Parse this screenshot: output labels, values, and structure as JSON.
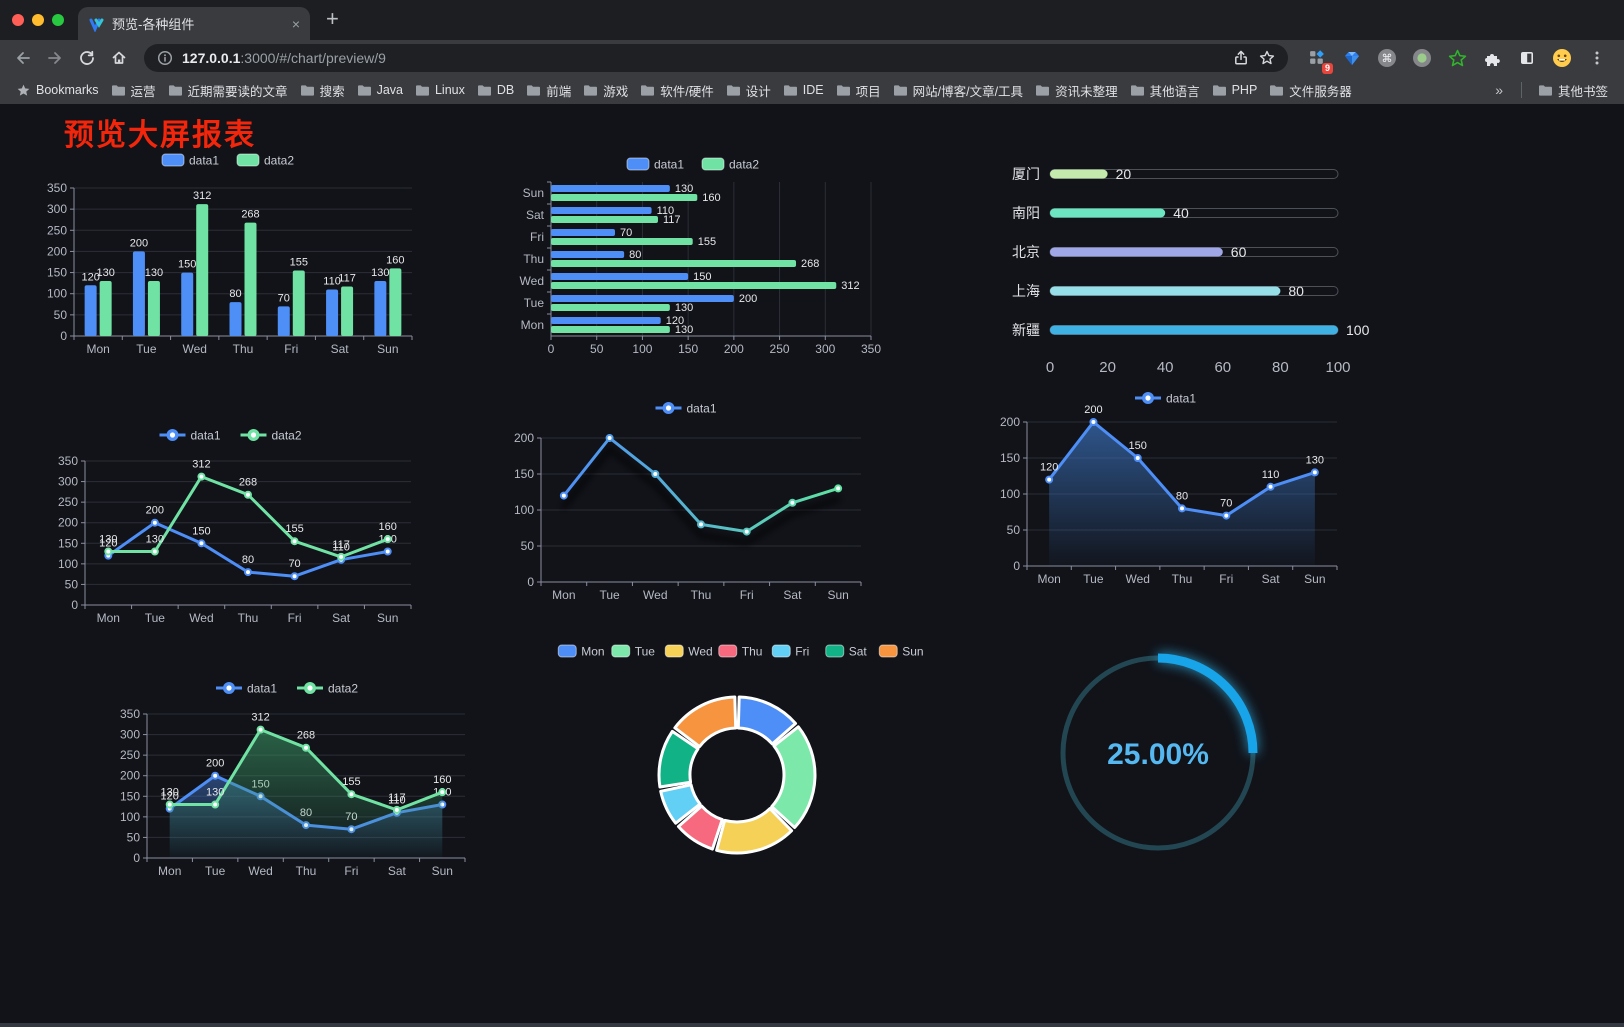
{
  "browser": {
    "tab": {
      "title": "预览-各种组件",
      "close_glyph": "×",
      "new_tab_glyph": "+"
    },
    "nav": {
      "url_host": "127.0.0.1",
      "url_rest": ":3000/#/chart/preview/9"
    },
    "extensions_badge": "9",
    "bookmarks": {
      "label": "Bookmarks",
      "folders": [
        "运营",
        "近期需要读的文章",
        "搜索",
        "Java",
        "Linux",
        "DB",
        "前端",
        "游戏",
        "软件/硬件",
        "设计",
        "IDE",
        "项目",
        "网站/博客/文章/工具",
        "资讯未整理",
        "其他语言",
        "PHP",
        "文件服务器"
      ],
      "overflow_glyph": "»",
      "other_label": "其他书签"
    }
  },
  "page": {
    "title": "预览大屏报表",
    "title_color": "#F3260B"
  },
  "chart_data": [
    {
      "id": "grouped-bar",
      "type": "bar",
      "categories": [
        "Mon",
        "Tue",
        "Wed",
        "Thu",
        "Fri",
        "Sat",
        "Sun"
      ],
      "series": [
        {
          "name": "data1",
          "color": "#4E8EF7",
          "values": [
            120,
            200,
            150,
            80,
            70,
            110,
            130
          ]
        },
        {
          "name": "data2",
          "color": "#70E2A3",
          "values": [
            130,
            130,
            312,
            268,
            155,
            117,
            160
          ]
        }
      ],
      "ylim": [
        0,
        350
      ],
      "ystep": 50,
      "legend": "top",
      "value_labels": true,
      "grid": true
    },
    {
      "id": "horizontal-grouped-bar",
      "type": "hbar",
      "categories": [
        "Mon",
        "Tue",
        "Wed",
        "Thu",
        "Fri",
        "Sat",
        "Sun"
      ],
      "series": [
        {
          "name": "data1",
          "color": "#4E8EF7",
          "values": [
            120,
            200,
            150,
            80,
            70,
            110,
            130
          ]
        },
        {
          "name": "data2",
          "color": "#70E2A3",
          "values": [
            130,
            130,
            312,
            268,
            155,
            117,
            160
          ]
        }
      ],
      "xlim": [
        0,
        350
      ],
      "xstep": 50,
      "legend": "top",
      "value_labels": true,
      "grid": true
    },
    {
      "id": "city-progress-bars",
      "type": "progress",
      "max": 100,
      "xticks": [
        0,
        20,
        40,
        60,
        80,
        100
      ],
      "rows": [
        {
          "label": "厦门",
          "value": 20,
          "color": "#C4EBAD"
        },
        {
          "label": "南阳",
          "value": 40,
          "color": "#6BE6C1"
        },
        {
          "label": "北京",
          "value": 60,
          "color": "#A0A7E6"
        },
        {
          "label": "上海",
          "value": 80,
          "color": "#96DEE8"
        },
        {
          "label": "新疆",
          "value": 100,
          "color": "#3FB1E3"
        }
      ]
    },
    {
      "id": "two-series-line",
      "type": "line",
      "categories": [
        "Mon",
        "Tue",
        "Wed",
        "Thu",
        "Fri",
        "Sat",
        "Sun"
      ],
      "series": [
        {
          "name": "data1",
          "color": "#4E8EF7",
          "values": [
            120,
            200,
            150,
            80,
            70,
            110,
            130
          ]
        },
        {
          "name": "data2",
          "color": "#70E2A3",
          "values": [
            130,
            130,
            312,
            268,
            155,
            117,
            160
          ]
        }
      ],
      "ylim": [
        0,
        350
      ],
      "ystep": 50,
      "legend": "top",
      "value_labels": true,
      "grid": true
    },
    {
      "id": "gradient-line",
      "type": "line",
      "categories": [
        "Mon",
        "Tue",
        "Wed",
        "Thu",
        "Fri",
        "Sat",
        "Sun"
      ],
      "series": [
        {
          "name": "data1",
          "color": "#4E8EF7",
          "gradient": [
            "#4E8EF7",
            "#5FE3A1"
          ],
          "shadow": true,
          "values": [
            120,
            200,
            150,
            80,
            70,
            110,
            130
          ]
        }
      ],
      "ylim": [
        0,
        200
      ],
      "ystep": 50,
      "legend": "top",
      "value_labels": false,
      "grid": true
    },
    {
      "id": "area-line",
      "type": "line",
      "categories": [
        "Mon",
        "Tue",
        "Wed",
        "Thu",
        "Fri",
        "Sat",
        "Sun"
      ],
      "series": [
        {
          "name": "data1",
          "color": "#4E8EF7",
          "area": [
            "rgba(56,108,178,0.75)",
            "rgba(56,108,178,0.03)"
          ],
          "values": [
            120,
            200,
            150,
            80,
            70,
            110,
            130
          ]
        }
      ],
      "ylim": [
        0,
        200
      ],
      "ystep": 50,
      "legend": "top",
      "value_labels": true,
      "grid": true
    },
    {
      "id": "two-series-area-line",
      "type": "line",
      "categories": [
        "Mon",
        "Tue",
        "Wed",
        "Thu",
        "Fri",
        "Sat",
        "Sun"
      ],
      "series": [
        {
          "name": "data1",
          "color": "#4E8EF7",
          "area": [
            "rgba(62,112,190,0.55)",
            "rgba(62,112,190,0.02)"
          ],
          "values": [
            120,
            200,
            150,
            80,
            70,
            110,
            130
          ]
        },
        {
          "name": "data2",
          "color": "#70E2A3",
          "area": [
            "rgba(58,150,100,0.60)",
            "rgba(58,150,100,0.02)"
          ],
          "values": [
            130,
            130,
            312,
            268,
            155,
            117,
            160
          ]
        }
      ],
      "ylim": [
        0,
        350
      ],
      "ystep": 50,
      "legend": "top",
      "value_labels": true,
      "grid": true
    },
    {
      "id": "weekday-donut",
      "type": "donut",
      "legend": "top",
      "items": [
        {
          "name": "Mon",
          "value": 120,
          "color": "#4E8EF7"
        },
        {
          "name": "Tue",
          "value": 200,
          "color": "#7CE8A9"
        },
        {
          "name": "Wed",
          "value": 150,
          "color": "#F5D158"
        },
        {
          "name": "Thu",
          "value": 80,
          "color": "#F7697E"
        },
        {
          "name": "Fri",
          "value": 70,
          "color": "#62CFF4"
        },
        {
          "name": "Sat",
          "value": 110,
          "color": "#12B287"
        },
        {
          "name": "Sun",
          "value": 130,
          "color": "#F79440"
        }
      ]
    },
    {
      "id": "percent-gauge",
      "type": "gauge",
      "value": 25,
      "label": "25.00%",
      "color": "#18A4E8",
      "track_color": "#234752",
      "text_color": "#55B8F1"
    }
  ]
}
